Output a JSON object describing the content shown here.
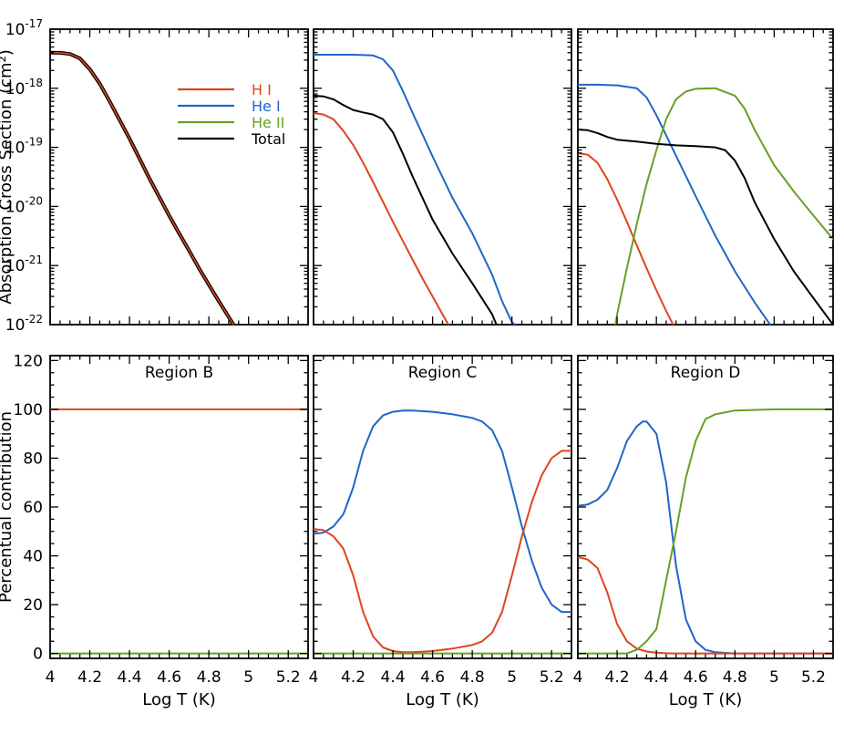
{
  "chart_data": [
    {
      "type": "line",
      "panel": "top-left",
      "title": "",
      "xlabel": "",
      "ylabel": "Absorption Cross Section (cm²)",
      "y_scale": "log",
      "xlim": [
        4.0,
        5.3
      ],
      "ylim": [
        1e-22,
        1e-17
      ],
      "x_ticks": [
        4.0,
        4.2,
        4.4,
        4.6,
        4.8,
        5.0,
        5.2
      ],
      "y_ticks": [
        {
          "value": 1e-17,
          "base": "10",
          "exp": "-17"
        },
        {
          "value": 1e-18,
          "base": "10",
          "exp": "-18"
        },
        {
          "value": 1e-19,
          "base": "10",
          "exp": "-19"
        },
        {
          "value": 1e-20,
          "base": "10",
          "exp": "-20"
        },
        {
          "value": 1e-21,
          "base": "10",
          "exp": "-21"
        },
        {
          "value": 1e-22,
          "base": "10",
          "exp": "-22"
        }
      ],
      "legend": {
        "placement": "top-right",
        "entries": [
          {
            "label": "H I",
            "color": "#e0441c"
          },
          {
            "label": "He I",
            "color": "#1f66c8"
          },
          {
            "label": "He II",
            "color": "#66a024"
          },
          {
            "label": "Total",
            "color": "#000000"
          }
        ]
      },
      "series": [
        {
          "name": "Total",
          "color": "#000000",
          "width": 4,
          "x": [
            4.0,
            4.05,
            4.1,
            4.15,
            4.2,
            4.25,
            4.3,
            4.35,
            4.4,
            4.45,
            4.5,
            4.55,
            4.6,
            4.65,
            4.7,
            4.75,
            4.8,
            4.85,
            4.9,
            4.95
          ],
          "y": [
            4e-18,
            3.98e-18,
            3.8e-18,
            3.2e-18,
            2.1e-18,
            1.2e-18,
            6e-19,
            2.9e-19,
            1.4e-19,
            6.5e-20,
            3e-20,
            1.45e-20,
            7e-21,
            3.5e-21,
            1.8e-21,
            9e-22,
            4.7e-22,
            2.5e-22,
            1.35e-22,
            7.2e-23
          ]
        },
        {
          "name": "H I",
          "color": "#e0441c",
          "width": 1.6,
          "x": [
            4.0,
            4.05,
            4.1,
            4.15,
            4.2,
            4.25,
            4.3,
            4.35,
            4.4,
            4.45,
            4.5,
            4.55,
            4.6,
            4.65,
            4.7,
            4.75,
            4.8,
            4.85,
            4.9,
            4.95
          ],
          "y": [
            4e-18,
            3.98e-18,
            3.8e-18,
            3.2e-18,
            2.1e-18,
            1.2e-18,
            6e-19,
            2.9e-19,
            1.4e-19,
            6.5e-20,
            3e-20,
            1.45e-20,
            7e-21,
            3.5e-21,
            1.8e-21,
            9e-22,
            4.7e-22,
            2.5e-22,
            1.35e-22,
            7.2e-23
          ]
        }
      ]
    },
    {
      "type": "line",
      "panel": "top-middle",
      "title": "",
      "y_scale": "log",
      "xlim": [
        4.0,
        5.3
      ],
      "ylim": [
        1e-22,
        1e-17
      ],
      "series": [
        {
          "name": "He I",
          "color": "#1f66c8",
          "x": [
            4.0,
            4.1,
            4.2,
            4.3,
            4.35,
            4.4,
            4.45,
            4.5,
            4.6,
            4.7,
            4.8,
            4.9,
            4.95,
            5.0,
            5.05,
            5.07
          ],
          "y": [
            3.7e-18,
            3.7e-18,
            3.7e-18,
            3.6e-18,
            3.1e-18,
            2e-18,
            9e-19,
            3.8e-19,
            7e-20,
            1.4e-20,
            3.5e-21,
            7e-22,
            2.5e-22,
            1.1e-22,
            8e-23,
            6e-23
          ]
        },
        {
          "name": "H I",
          "color": "#e0441c",
          "x": [
            4.0,
            4.05,
            4.1,
            4.15,
            4.2,
            4.25,
            4.3,
            4.35,
            4.4,
            4.45,
            4.5,
            4.55,
            4.6,
            4.65,
            4.7
          ],
          "y": [
            3.8e-19,
            3.6e-19,
            3e-19,
            1.9e-19,
            1.1e-19,
            5.5e-20,
            2.6e-20,
            1.2e-20,
            5.5e-21,
            2.6e-21,
            1.25e-21,
            6e-22,
            3e-22,
            1.5e-22,
            7.5e-23
          ]
        },
        {
          "name": "Total",
          "color": "#000000",
          "x": [
            4.0,
            4.05,
            4.1,
            4.15,
            4.2,
            4.25,
            4.3,
            4.35,
            4.4,
            4.45,
            4.5,
            4.6,
            4.7,
            4.8,
            4.9,
            4.95
          ],
          "y": [
            7.5e-19,
            7.3e-19,
            6.5e-19,
            5.2e-19,
            4.3e-19,
            3.9e-19,
            3.6e-19,
            3e-19,
            1.8e-19,
            7.8e-20,
            3.2e-20,
            6e-21,
            1.6e-21,
            5e-22,
            1.5e-22,
            6e-23
          ]
        }
      ]
    },
    {
      "type": "line",
      "panel": "top-right",
      "title": "",
      "y_scale": "log",
      "xlim": [
        4.0,
        5.3
      ],
      "ylim": [
        1e-22,
        1e-17
      ],
      "series": [
        {
          "name": "He I",
          "color": "#1f66c8",
          "x": [
            4.0,
            4.1,
            4.2,
            4.3,
            4.35,
            4.4,
            4.45,
            4.5,
            4.6,
            4.7,
            4.8,
            4.9,
            5.0,
            5.03
          ],
          "y": [
            1.15e-18,
            1.15e-18,
            1.12e-18,
            1e-18,
            7e-19,
            3.5e-19,
            1.6e-19,
            7.2e-20,
            1.5e-20,
            3.2e-21,
            8e-22,
            2.4e-22,
            8e-23,
            6e-23
          ]
        },
        {
          "name": "H I",
          "color": "#e0441c",
          "x": [
            4.0,
            4.05,
            4.1,
            4.15,
            4.2,
            4.25,
            4.3,
            4.35,
            4.4,
            4.45,
            4.5,
            4.55
          ],
          "y": [
            8e-20,
            7.5e-20,
            5.5e-20,
            2.9e-20,
            1.3e-20,
            5.5e-21,
            2.2e-21,
            9e-22,
            3.8e-22,
            1.7e-22,
            8e-23,
            4.5e-23
          ]
        },
        {
          "name": "He II",
          "color": "#66a024",
          "x": [
            4.18,
            4.2,
            4.25,
            4.3,
            4.35,
            4.4,
            4.45,
            4.5,
            4.55,
            4.6,
            4.7,
            4.8,
            4.85,
            4.9,
            5.0,
            5.1,
            5.2,
            5.3
          ],
          "y": [
            6e-23,
            1.5e-22,
            9e-22,
            5e-21,
            2.4e-20,
            9e-20,
            3e-19,
            6.5e-19,
            8.8e-19,
            9.8e-19,
            1e-18,
            7.5e-19,
            4.5e-19,
            2e-19,
            5e-20,
            1.8e-20,
            7e-21,
            2.8e-21
          ]
        },
        {
          "name": "Total",
          "color": "#000000",
          "x": [
            4.0,
            4.05,
            4.1,
            4.15,
            4.2,
            4.3,
            4.4,
            4.5,
            4.6,
            4.7,
            4.75,
            4.8,
            4.85,
            4.9,
            5.0,
            5.1,
            5.2,
            5.3
          ],
          "y": [
            2e-19,
            1.95e-19,
            1.75e-19,
            1.5e-19,
            1.35e-19,
            1.25e-19,
            1.15e-19,
            1.08e-19,
            1.05e-19,
            1e-19,
            9e-20,
            6e-20,
            3e-20,
            1.2e-20,
            2.8e-21,
            8e-22,
            2.8e-22,
            1e-22
          ]
        }
      ]
    },
    {
      "type": "line",
      "panel": "bottom-left",
      "title": "Region B",
      "xlabel": "Log T (K)",
      "ylabel": "Percentual contribution",
      "xlim": [
        4.0,
        5.3
      ],
      "ylim": [
        -2,
        122
      ],
      "x_ticks": [
        4.0,
        4.2,
        4.4,
        4.6,
        4.8,
        5.0,
        5.2
      ],
      "y_ticks": [
        0,
        20,
        40,
        60,
        80,
        100,
        120
      ],
      "series": [
        {
          "name": "H I",
          "color": "#e0441c",
          "x": [
            4.0,
            5.3
          ],
          "y": [
            100,
            100
          ]
        },
        {
          "name": "He II",
          "color": "#66a024",
          "x": [
            4.0,
            5.3
          ],
          "y": [
            0,
            0
          ]
        }
      ]
    },
    {
      "type": "line",
      "panel": "bottom-middle",
      "title": "Region C",
      "xlabel": "Log T (K)",
      "xlim": [
        4.0,
        5.3
      ],
      "ylim": [
        -2,
        122
      ],
      "x_ticks": [
        4.0,
        4.2,
        4.4,
        4.6,
        4.8,
        5.0,
        5.2
      ],
      "series": [
        {
          "name": "He I",
          "color": "#1f66c8",
          "x": [
            4.0,
            4.05,
            4.1,
            4.15,
            4.2,
            4.25,
            4.3,
            4.35,
            4.4,
            4.45,
            4.5,
            4.6,
            4.7,
            4.8,
            4.85,
            4.9,
            4.95,
            5.0,
            5.05,
            5.1,
            5.15,
            5.2,
            5.25,
            5.3
          ],
          "y": [
            49,
            49.5,
            52,
            57,
            68,
            83,
            93,
            97.5,
            99,
            99.5,
            99.5,
            99,
            98,
            96.5,
            95,
            91.5,
            83,
            68,
            52,
            38,
            27,
            20,
            17,
            17
          ]
        },
        {
          "name": "H I",
          "color": "#e0441c",
          "x": [
            4.0,
            4.05,
            4.1,
            4.15,
            4.2,
            4.25,
            4.3,
            4.35,
            4.4,
            4.45,
            4.5,
            4.6,
            4.7,
            4.8,
            4.85,
            4.9,
            4.95,
            5.0,
            5.05,
            5.1,
            5.15,
            5.2,
            5.25,
            5.3
          ],
          "y": [
            51,
            50.5,
            48,
            43,
            32,
            17,
            7,
            2.5,
            1,
            0.5,
            0.5,
            1,
            2,
            3.5,
            5,
            8.5,
            17,
            32,
            48,
            62,
            73,
            80,
            83,
            83
          ]
        },
        {
          "name": "He II",
          "color": "#66a024",
          "x": [
            4.0,
            5.3
          ],
          "y": [
            0,
            0
          ]
        }
      ]
    },
    {
      "type": "line",
      "panel": "bottom-right",
      "title": "Region D",
      "xlabel": "Log T (K)",
      "xlim": [
        4.0,
        5.3
      ],
      "ylim": [
        -2,
        122
      ],
      "x_ticks": [
        4.0,
        4.2,
        4.4,
        4.6,
        4.8,
        5.0,
        5.2
      ],
      "series": [
        {
          "name": "He I",
          "color": "#1f66c8",
          "x": [
            4.0,
            4.05,
            4.1,
            4.15,
            4.2,
            4.25,
            4.3,
            4.33,
            4.35,
            4.4,
            4.45,
            4.5,
            4.55,
            4.6,
            4.65,
            4.7,
            4.8,
            5.0,
            5.3
          ],
          "y": [
            60.5,
            61,
            63,
            67,
            76,
            87,
            93,
            95,
            95,
            90,
            70,
            36,
            14,
            5,
            1.5,
            0.5,
            0,
            0,
            0
          ]
        },
        {
          "name": "H I",
          "color": "#e0441c",
          "x": [
            4.0,
            4.05,
            4.1,
            4.15,
            4.2,
            4.25,
            4.3,
            4.35,
            4.4,
            4.45,
            4.5,
            4.6,
            5.3
          ],
          "y": [
            39.5,
            38.5,
            35,
            25,
            12,
            5,
            2,
            0.8,
            0.3,
            0.1,
            0,
            0,
            0
          ]
        },
        {
          "name": "He II",
          "color": "#66a024",
          "x": [
            4.0,
            4.25,
            4.3,
            4.35,
            4.4,
            4.45,
            4.5,
            4.55,
            4.6,
            4.65,
            4.7,
            4.8,
            5.0,
            5.3
          ],
          "y": [
            0,
            0,
            1.5,
            5,
            10,
            30,
            50,
            72,
            87,
            96,
            98,
            99.5,
            100,
            100
          ]
        }
      ]
    }
  ]
}
